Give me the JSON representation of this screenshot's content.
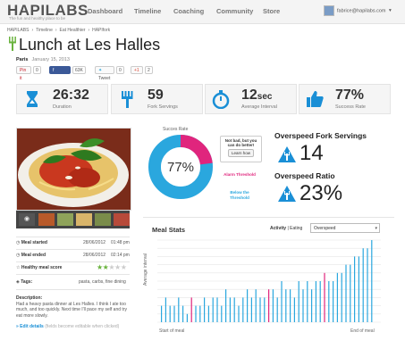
{
  "header": {
    "logo": "HAPILABS",
    "tagline": "The fun and healthy place to be",
    "nav": [
      "Dashboard",
      "Timeline",
      "Coaching",
      "Community",
      "Store"
    ],
    "user_email": "fabrice@hapilabs.com",
    "user_caret": "▾"
  },
  "breadcrumb": [
    "HAPILABS",
    "›",
    "Timeline",
    "›",
    "Eat Healthier",
    "›",
    "HAPIfork"
  ],
  "meal": {
    "title": "Lunch at Les Halles",
    "city": "Paris",
    "date": "January 15, 2013"
  },
  "social": {
    "pin": "Pin it",
    "pin_count": "0",
    "share": "Share",
    "share_count": "63K",
    "tweet": "Tweet",
    "tweet_count": "0",
    "gplus": "+1",
    "gplus_count": "2"
  },
  "stats": [
    {
      "value": "26:32",
      "unit": "",
      "label": "Duration",
      "icon": "hourglass-icon"
    },
    {
      "value": "59",
      "unit": "",
      "label": "Fork Servings",
      "icon": "fork-icon"
    },
    {
      "value": "12",
      "unit": "sec",
      "label": "Average Interval",
      "icon": "stopwatch-icon"
    },
    {
      "value": "77%",
      "unit": "",
      "label": "Success Rate",
      "icon": "thumbs-up-icon"
    }
  ],
  "details": {
    "started_label": "Meal started",
    "started_date": "28/06/2012",
    "started_time": "01:48 pm",
    "ended_label": "Meal ended",
    "ended_date": "28/06/2012",
    "ended_time": "02:14 pm",
    "score_label": "Healthy meal score",
    "score_stars": 2,
    "score_max": 5,
    "tags_label": "Tags:",
    "tags_value": "pasta, carbs, fine dining",
    "description_label": "Description:",
    "description": "Had a heavy pasta dinner at Les Halles. I think I ate too much, and too quickly. Next time I'll pace my self and try eat more slowly.",
    "edit_label": "» Edit details",
    "edit_hint": "(fields become editable when clicked)"
  },
  "gauge": {
    "title": "Succes Rate",
    "value_text": "77%",
    "value": 77,
    "color_main": "#2aa7de",
    "color_rest": "#e0257d"
  },
  "bubble": {
    "text": "Not bad, but you can do better!",
    "button": "Learn how"
  },
  "thresholds": {
    "alarm": "Alarm Threshold",
    "below": "Below the Threshold"
  },
  "overspeed": {
    "servings_title": "Overspeed Fork Servings",
    "servings_value": "14",
    "ratio_title": "Overspeed Ratio",
    "ratio_value": "23%"
  },
  "meal_stats": {
    "title": "Meal Stats",
    "activity_label": "Activity",
    "sep": " | ",
    "eating_label": "Eating",
    "select_value": "Overspeed",
    "select_caret": "▾",
    "y_label": "Average interval",
    "x_start": "Start of meal",
    "x_end": "End of meal"
  },
  "chart_data": {
    "type": "bar",
    "title": "Meal Stats",
    "xlabel": "",
    "ylabel": "Average interval",
    "x_labels": [
      "Start of meal",
      "End of meal"
    ],
    "colors": {
      "normal": "#2aa7de",
      "overspeed": "#e0257d"
    },
    "values": [
      2,
      3,
      2,
      2,
      3,
      2,
      1,
      3,
      2,
      2,
      3,
      2,
      3,
      3,
      2,
      4,
      3,
      3,
      2,
      3,
      4,
      3,
      4,
      3,
      3,
      4,
      4,
      3,
      5,
      4,
      4,
      3,
      5,
      4,
      5,
      4,
      5,
      5,
      6,
      5,
      5,
      6,
      6,
      7,
      7,
      8,
      8,
      9,
      9,
      10
    ],
    "overspeed_index": [
      7,
      25,
      38
    ],
    "ylim": [
      0,
      10
    ]
  }
}
